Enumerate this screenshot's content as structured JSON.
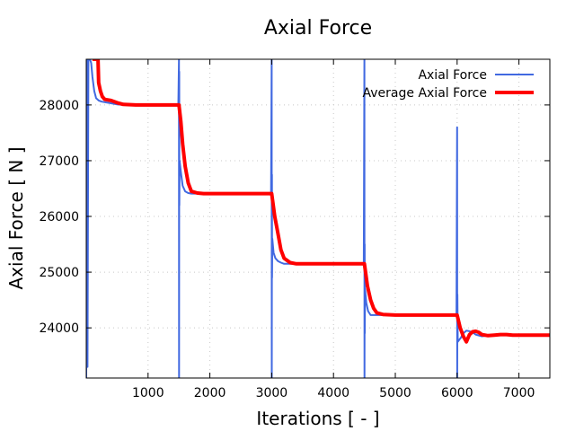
{
  "chart_data": {
    "type": "line",
    "title": "Axial Force",
    "xlabel": "Iterations [ - ]",
    "ylabel": "Axial Force [ N ]",
    "xlim": [
      0,
      7500
    ],
    "ylim": [
      23100,
      28820
    ],
    "xticks": [
      1000,
      2000,
      3000,
      4000,
      5000,
      6000,
      7000
    ],
    "yticks": [
      24000,
      25000,
      26000,
      27000,
      28000
    ],
    "grid": true,
    "legend_position": "top-right",
    "colors": {
      "Axial Force": "#4169e1",
      "Average Axial Force": "#ff0000"
    },
    "series": [
      {
        "name": "Axial Force",
        "x": [
          0,
          10,
          20,
          35,
          50,
          60,
          80,
          100,
          130,
          160,
          200,
          250,
          300,
          400,
          500,
          600,
          800,
          1000,
          1200,
          1490,
          1500,
          1502,
          1504,
          1506,
          1510,
          1530,
          1560,
          1600,
          1650,
          1700,
          1800,
          1900,
          2000,
          2200,
          2500,
          2800,
          2990,
          3000,
          3002,
          3004,
          3006,
          3010,
          3030,
          3060,
          3100,
          3150,
          3200,
          3300,
          3400,
          3600,
          4000,
          4400,
          4490,
          4500,
          4502,
          4504,
          4506,
          4510,
          4530,
          4560,
          4600,
          4650,
          4700,
          4800,
          5000,
          5500,
          5990,
          6000,
          6002,
          6004,
          6010,
          6030,
          6060,
          6100,
          6150,
          6200,
          6250,
          6300,
          6400,
          6500,
          6600,
          6700,
          6800,
          6900,
          7000,
          7200,
          7500
        ],
        "y": [
          23100,
          28820,
          23300,
          28820,
          28820,
          28820,
          28750,
          28500,
          28250,
          28120,
          28080,
          28060,
          28050,
          28030,
          28010,
          28000,
          28000,
          28000,
          28000,
          28000,
          28820,
          23100,
          28600,
          26200,
          27000,
          26800,
          26550,
          26450,
          26420,
          26410,
          26410,
          26410,
          26410,
          26410,
          26410,
          26410,
          26410,
          28820,
          23100,
          26750,
          24900,
          25600,
          25350,
          25250,
          25200,
          25170,
          25150,
          25150,
          25150,
          25150,
          25150,
          25150,
          25150,
          28820,
          23100,
          25500,
          23900,
          24700,
          24450,
          24300,
          24230,
          24230,
          24230,
          24230,
          24230,
          24230,
          24230,
          27600,
          23100,
          24600,
          23750,
          23780,
          23820,
          23900,
          23950,
          23940,
          23920,
          23880,
          23850,
          23860,
          23880,
          23870,
          23870,
          23870,
          23870,
          23870,
          23870
        ]
      },
      {
        "name": "Average Axial Force",
        "x": [
          100,
          190,
          200,
          230,
          260,
          300,
          400,
          500,
          600,
          800,
          1000,
          1200,
          1500,
          1530,
          1560,
          1600,
          1650,
          1700,
          1800,
          1900,
          2000,
          2200,
          2500,
          2800,
          3000,
          3050,
          3100,
          3150,
          3200,
          3300,
          3400,
          3600,
          3800,
          4000,
          4200,
          4500,
          4550,
          4600,
          4650,
          4700,
          4800,
          5000,
          5500,
          6000,
          6050,
          6100,
          6150,
          6200,
          6250,
          6300,
          6350,
          6400,
          6500,
          6600,
          6700,
          6800,
          6900,
          7000,
          7200,
          7500
        ],
        "y": [
          28820,
          28820,
          28400,
          28250,
          28150,
          28100,
          28080,
          28040,
          28010,
          28000,
          28000,
          28000,
          28000,
          27700,
          27300,
          26900,
          26600,
          26450,
          26420,
          26410,
          26410,
          26410,
          26410,
          26410,
          26410,
          26000,
          25700,
          25400,
          25250,
          25170,
          25150,
          25150,
          25150,
          25150,
          25150,
          25150,
          24750,
          24500,
          24350,
          24270,
          24240,
          24230,
          24230,
          24230,
          24000,
          23850,
          23750,
          23880,
          23930,
          23940,
          23920,
          23880,
          23860,
          23870,
          23880,
          23880,
          23870,
          23870,
          23870,
          23870
        ]
      }
    ]
  }
}
